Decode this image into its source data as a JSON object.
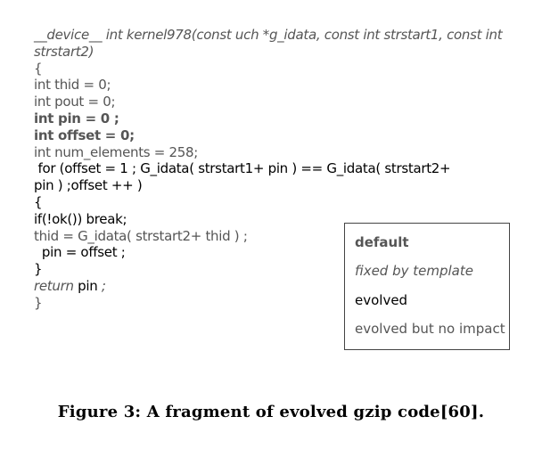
{
  "code_lines": [
    {
      "segments": [
        {
          "text": "__device__ int kernel978(const uch *g_idata, const int strstart1, const int",
          "style": "fixed"
        }
      ]
    },
    {
      "segments": [
        {
          "text": "strstart2)",
          "style": "fixed"
        }
      ]
    },
    {
      "segments": [
        {
          "text": "{",
          "style": "noimpact"
        }
      ]
    },
    {
      "segments": [
        {
          "text": "int thid = 0;",
          "style": "noimpact"
        }
      ]
    },
    {
      "segments": [
        {
          "text": "int pout = 0;",
          "style": "noimpact"
        }
      ]
    },
    {
      "segments": [
        {
          "text": "int pin = 0 ;",
          "style": "default"
        }
      ]
    },
    {
      "segments": [
        {
          "text": "int offset = 0;",
          "style": "default"
        }
      ]
    },
    {
      "segments": [
        {
          "text": "int num_elements = 258;",
          "style": "noimpact"
        }
      ]
    },
    {
      "segments": [
        {
          "text": " for (offset = 1 ; G_idata( strstart1+ pin ) == G_idata( strstart2+",
          "style": "evolved"
        }
      ]
    },
    {
      "segments": [
        {
          "text": "pin ) ;offset ++ )",
          "style": "evolved"
        }
      ]
    },
    {
      "segments": [
        {
          "text": "{",
          "style": "evolved"
        }
      ]
    },
    {
      "segments": [
        {
          "text": "if(!ok()) break;",
          "style": "evolved"
        }
      ]
    },
    {
      "segments": [
        {
          "text": "thid = G_idata( strstart2+ thid ) ;",
          "style": "noimpact"
        }
      ]
    },
    {
      "segments": [
        {
          "text": "  pin = offset ;",
          "style": "evolved"
        }
      ]
    },
    {
      "segments": [
        {
          "text": "}",
          "style": "evolved"
        }
      ]
    },
    {
      "segments": [
        {
          "text": "return",
          "style": "fixed"
        },
        {
          "text": " pin ",
          "style": "evolved"
        },
        {
          "text": ";",
          "style": "fixed"
        }
      ]
    },
    {
      "segments": [
        {
          "text": "}",
          "style": "noimpact"
        }
      ]
    }
  ],
  "legend": {
    "default": "default",
    "fixed": "fixed by template",
    "evolved": "evolved",
    "noimpact": "evolved but no impact"
  },
  "caption": "Figure 3:  A fragment of evolved gzip code[60]."
}
